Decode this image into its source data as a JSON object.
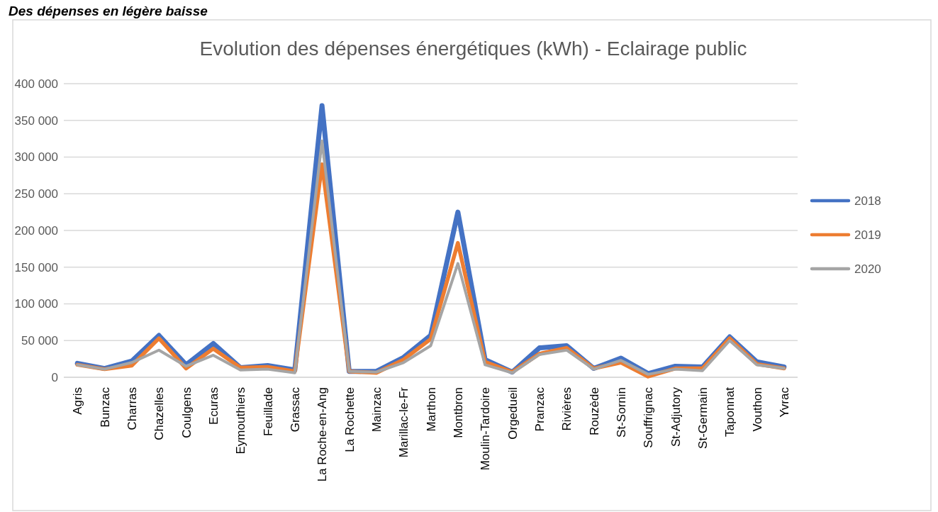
{
  "chart_data": {
    "type": "line",
    "title": "Evolution des dépenses énergétiques (kWh) - Eclairage public",
    "annotations": [
      "Des dépenses en légère baisse"
    ],
    "categories": [
      "Agris",
      "Bunzac",
      "Charras",
      "Chazelles",
      "Coulgens",
      "Ecuras",
      "Eymouthiers",
      "Feuillade",
      "Grassac",
      "La Roche-en-Ang",
      "La Rochette",
      "Mainzac",
      "Marillac-le-Fr",
      "Marthon",
      "Montbron",
      "Moulin-Tardoire",
      "Orgedueil",
      "Pranzac",
      "Rivières",
      "Rouzède",
      "St-Sornin",
      "Souffrignac",
      "St-Adjutory",
      "St-Germain",
      "Taponnat",
      "Vouthon",
      "Yvrac"
    ],
    "series": [
      {
        "name": "2018",
        "color": "#4472c4",
        "values": [
          19000,
          12000,
          22000,
          57000,
          17000,
          46000,
          13000,
          16000,
          10000,
          370000,
          8000,
          8000,
          27000,
          57000,
          225000,
          24000,
          7000,
          40000,
          43000,
          12000,
          26000,
          5000,
          15000,
          14000,
          55000,
          21000,
          14000
        ]
      },
      {
        "name": "2019",
        "color": "#ed7d31",
        "values": [
          17000,
          11000,
          16000,
          53000,
          12000,
          39000,
          13000,
          14000,
          8000,
          290000,
          8000,
          6000,
          24000,
          52000,
          183000,
          21000,
          7000,
          32000,
          40000,
          12000,
          20000,
          1000,
          12000,
          12000,
          53000,
          18000,
          12000
        ]
      },
      {
        "name": "2020",
        "color": "#a5a5a5",
        "values": [
          17000,
          11000,
          20000,
          37000,
          15000,
          30000,
          10000,
          11000,
          6000,
          322000,
          8000,
          7000,
          20000,
          43000,
          155000,
          17000,
          6000,
          31000,
          37000,
          11000,
          23000,
          4000,
          11000,
          9000,
          50000,
          17000,
          12000
        ]
      }
    ],
    "ylim": [
      0,
      400000
    ],
    "yticks": [
      {
        "value": 0,
        "label": "0"
      },
      {
        "value": 50000,
        "label": "50 000"
      },
      {
        "value": 100000,
        "label": "100 000"
      },
      {
        "value": 150000,
        "label": "150 000"
      },
      {
        "value": 200000,
        "label": "200 000"
      },
      {
        "value": 250000,
        "label": "250 000"
      },
      {
        "value": 300000,
        "label": "300 000"
      },
      {
        "value": 350000,
        "label": "350 000"
      },
      {
        "value": 400000,
        "label": "400 000"
      }
    ],
    "grid": "y",
    "legend": "right",
    "marker": "none",
    "line_style": "solid"
  }
}
